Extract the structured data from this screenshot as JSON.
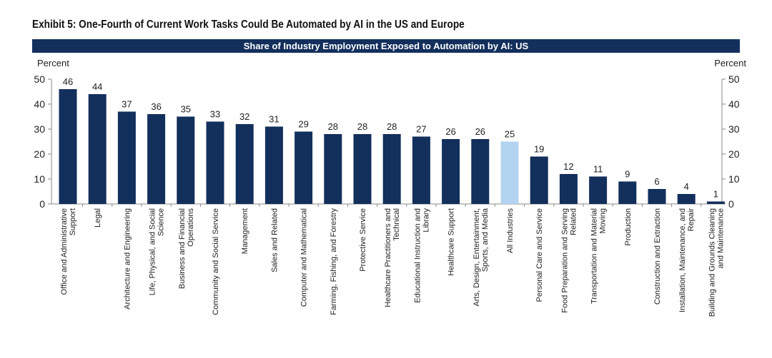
{
  "chart_data": {
    "type": "bar",
    "title": "Exhibit 5: One-Fourth of Current Work Tasks Could Be Automated by AI in the US and Europe",
    "subtitle": "Share of Industry Employment Exposed to Automation by AI: US",
    "ylabel_left": "Percent",
    "ylabel_right": "Percent",
    "ylim": [
      0,
      50
    ],
    "yticks": [
      0,
      10,
      20,
      30,
      40,
      50
    ],
    "grid": false,
    "colors": {
      "bar": "#132f5c",
      "highlight": "#b3d4f0"
    },
    "highlight_category": "All Industries",
    "categories": [
      [
        "Office and Administrative",
        "Support"
      ],
      [
        "Legal"
      ],
      [
        "Architecture and Engineering"
      ],
      [
        "Life, Physical, and Social",
        "Science"
      ],
      [
        "Business and Financial",
        "Operations"
      ],
      [
        "Community and Social Service"
      ],
      [
        "Management"
      ],
      [
        "Sales and Related"
      ],
      [
        "Computer and Mathematical"
      ],
      [
        "Farming, Fishing, and Forestry"
      ],
      [
        "Protective Service"
      ],
      [
        "Healthcare Practitioners and",
        "Technical"
      ],
      [
        "Educational Instruction and",
        "Library"
      ],
      [
        "Healthcare Support"
      ],
      [
        "Arts, Design, Entertainment,",
        "Sports, and Media"
      ],
      [
        "All Industries"
      ],
      [
        "Personal Care and Service"
      ],
      [
        "Food Preparation and Serving",
        "Related"
      ],
      [
        "Transportation and Material",
        "Moving"
      ],
      [
        "Production"
      ],
      [
        "Construction and Extraction"
      ],
      [
        "Installation, Maintenance, and",
        "Repair"
      ],
      [
        "Building and Grounds Cleaning",
        "and Maintenance"
      ]
    ],
    "values": [
      46,
      44,
      37,
      36,
      35,
      33,
      32,
      31,
      29,
      28,
      28,
      28,
      27,
      26,
      26,
      25,
      19,
      12,
      11,
      9,
      6,
      4,
      1
    ],
    "data_labels": [
      "46",
      "44",
      "37",
      "36",
      "35",
      "33",
      "32",
      "31",
      "29",
      "28",
      "28",
      "28",
      "27",
      "26",
      "26",
      "25",
      "19",
      "12",
      "11",
      "9",
      "6",
      "4",
      "1"
    ]
  }
}
